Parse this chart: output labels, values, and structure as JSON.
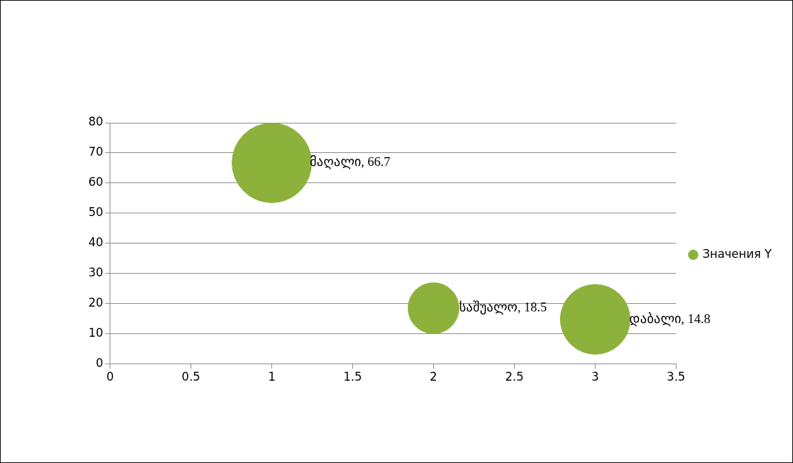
{
  "chart_data": {
    "type": "bubble",
    "x": [
      1,
      2,
      3
    ],
    "series": [
      {
        "name": "Значения Y",
        "color": "#8db23c",
        "values": [
          66.7,
          18.5,
          14.8
        ],
        "sizes": [
          1,
          0.41,
          0.77
        ],
        "value_labels": [
          "მაღალი, 66.7",
          "საშუალო, 18.5",
          "დაბალი, 14.8"
        ]
      }
    ],
    "xlim": [
      0,
      3.5
    ],
    "xticks": [
      0,
      0.5,
      1,
      1.5,
      2,
      2.5,
      3,
      3.5
    ],
    "ylim": [
      0,
      80
    ],
    "yticks": [
      0,
      10,
      20,
      30,
      40,
      50,
      60,
      70,
      80
    ],
    "grid": "y",
    "legend": "right"
  }
}
